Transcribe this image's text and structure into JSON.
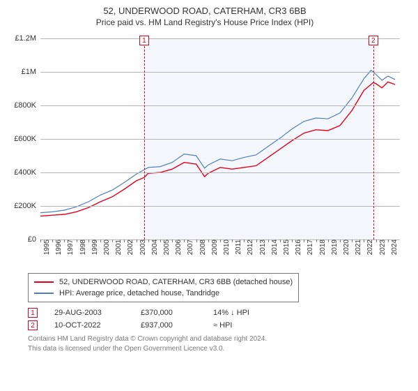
{
  "title": "52, UNDERWOOD ROAD, CATERHAM, CR3 6BB",
  "subtitle": "Price paid vs. HM Land Registry's House Price Index (HPI)",
  "chart": {
    "type": "line",
    "background_color": "#ffffff",
    "grid_color": "#b5b5b5",
    "shade_band_color": "#f3f7fc",
    "x_years": [
      1995,
      1996,
      1997,
      1998,
      1999,
      2000,
      2001,
      2002,
      2003,
      2004,
      2005,
      2006,
      2007,
      2008,
      2009,
      2010,
      2011,
      2012,
      2013,
      2014,
      2015,
      2016,
      2017,
      2018,
      2019,
      2020,
      2021,
      2022,
      2023,
      2024
    ],
    "xlim": [
      1995,
      2025
    ],
    "ylim": [
      0,
      1200000
    ],
    "ytick_step": 200000,
    "ytick_labels": [
      "£0",
      "£200K",
      "£400K",
      "£600K",
      "£800K",
      "£1M",
      "£1.2M"
    ],
    "series": [
      {
        "name": "price_paid",
        "label": "52, UNDERWOOD ROAD, CATERHAM, CR3 6BB (detached house)",
        "color": "#e4001b",
        "line_width": 1.4,
        "data": [
          [
            1995,
            140000
          ],
          [
            1996,
            145000
          ],
          [
            1997,
            150000
          ],
          [
            1998,
            165000
          ],
          [
            1999,
            190000
          ],
          [
            2000,
            225000
          ],
          [
            2001,
            255000
          ],
          [
            2002,
            300000
          ],
          [
            2003,
            350000
          ],
          [
            2003.66,
            370000
          ],
          [
            2004,
            395000
          ],
          [
            2005,
            400000
          ],
          [
            2006,
            420000
          ],
          [
            2007,
            460000
          ],
          [
            2008,
            450000
          ],
          [
            2008.7,
            375000
          ],
          [
            2009,
            395000
          ],
          [
            2010,
            430000
          ],
          [
            2011,
            420000
          ],
          [
            2012,
            430000
          ],
          [
            2013,
            440000
          ],
          [
            2014,
            490000
          ],
          [
            2015,
            540000
          ],
          [
            2016,
            590000
          ],
          [
            2017,
            635000
          ],
          [
            2018,
            655000
          ],
          [
            2019,
            650000
          ],
          [
            2020,
            680000
          ],
          [
            2021,
            770000
          ],
          [
            2022,
            890000
          ],
          [
            2022.78,
            937000
          ],
          [
            2023,
            930000
          ],
          [
            2023.5,
            905000
          ],
          [
            2024,
            940000
          ],
          [
            2024.6,
            925000
          ]
        ]
      },
      {
        "name": "hpi",
        "label": "HPI: Average price, detached house, Tandridge",
        "color": "#4f7fbf",
        "line_width": 1.2,
        "data": [
          [
            1995,
            160000
          ],
          [
            1996,
            165000
          ],
          [
            1997,
            175000
          ],
          [
            1998,
            195000
          ],
          [
            1999,
            225000
          ],
          [
            2000,
            265000
          ],
          [
            2001,
            295000
          ],
          [
            2002,
            340000
          ],
          [
            2003,
            390000
          ],
          [
            2004,
            430000
          ],
          [
            2005,
            435000
          ],
          [
            2006,
            460000
          ],
          [
            2007,
            510000
          ],
          [
            2008,
            500000
          ],
          [
            2008.7,
            425000
          ],
          [
            2009,
            445000
          ],
          [
            2010,
            480000
          ],
          [
            2011,
            470000
          ],
          [
            2012,
            490000
          ],
          [
            2013,
            505000
          ],
          [
            2014,
            555000
          ],
          [
            2015,
            605000
          ],
          [
            2016,
            660000
          ],
          [
            2017,
            705000
          ],
          [
            2018,
            725000
          ],
          [
            2019,
            720000
          ],
          [
            2020,
            755000
          ],
          [
            2021,
            845000
          ],
          [
            2022,
            960000
          ],
          [
            2022.6,
            1010000
          ],
          [
            2023,
            985000
          ],
          [
            2023.5,
            950000
          ],
          [
            2024,
            975000
          ],
          [
            2024.6,
            955000
          ]
        ]
      }
    ],
    "markers": [
      {
        "n": "1",
        "x": 2003.66,
        "y": 370000,
        "color": "#e4001b",
        "date": "29-AUG-2003",
        "price": "£370,000",
        "delta": "14% ↓ HPI"
      },
      {
        "n": "2",
        "x": 2022.78,
        "y": 937000,
        "color": "#e4001b",
        "date": "10-OCT-2022",
        "price": "£937,000",
        "delta": "≈ HPI"
      }
    ]
  },
  "legend": {
    "s1_label": "52, UNDERWOOD ROAD, CATERHAM, CR3 6BB (detached house)",
    "s2_label": "HPI: Average price, detached house, Tandridge"
  },
  "footer": {
    "line1": "Contains HM Land Registry data © Crown copyright and database right 2024.",
    "line2": "This data is licensed under the Open Government Licence v3.0."
  }
}
